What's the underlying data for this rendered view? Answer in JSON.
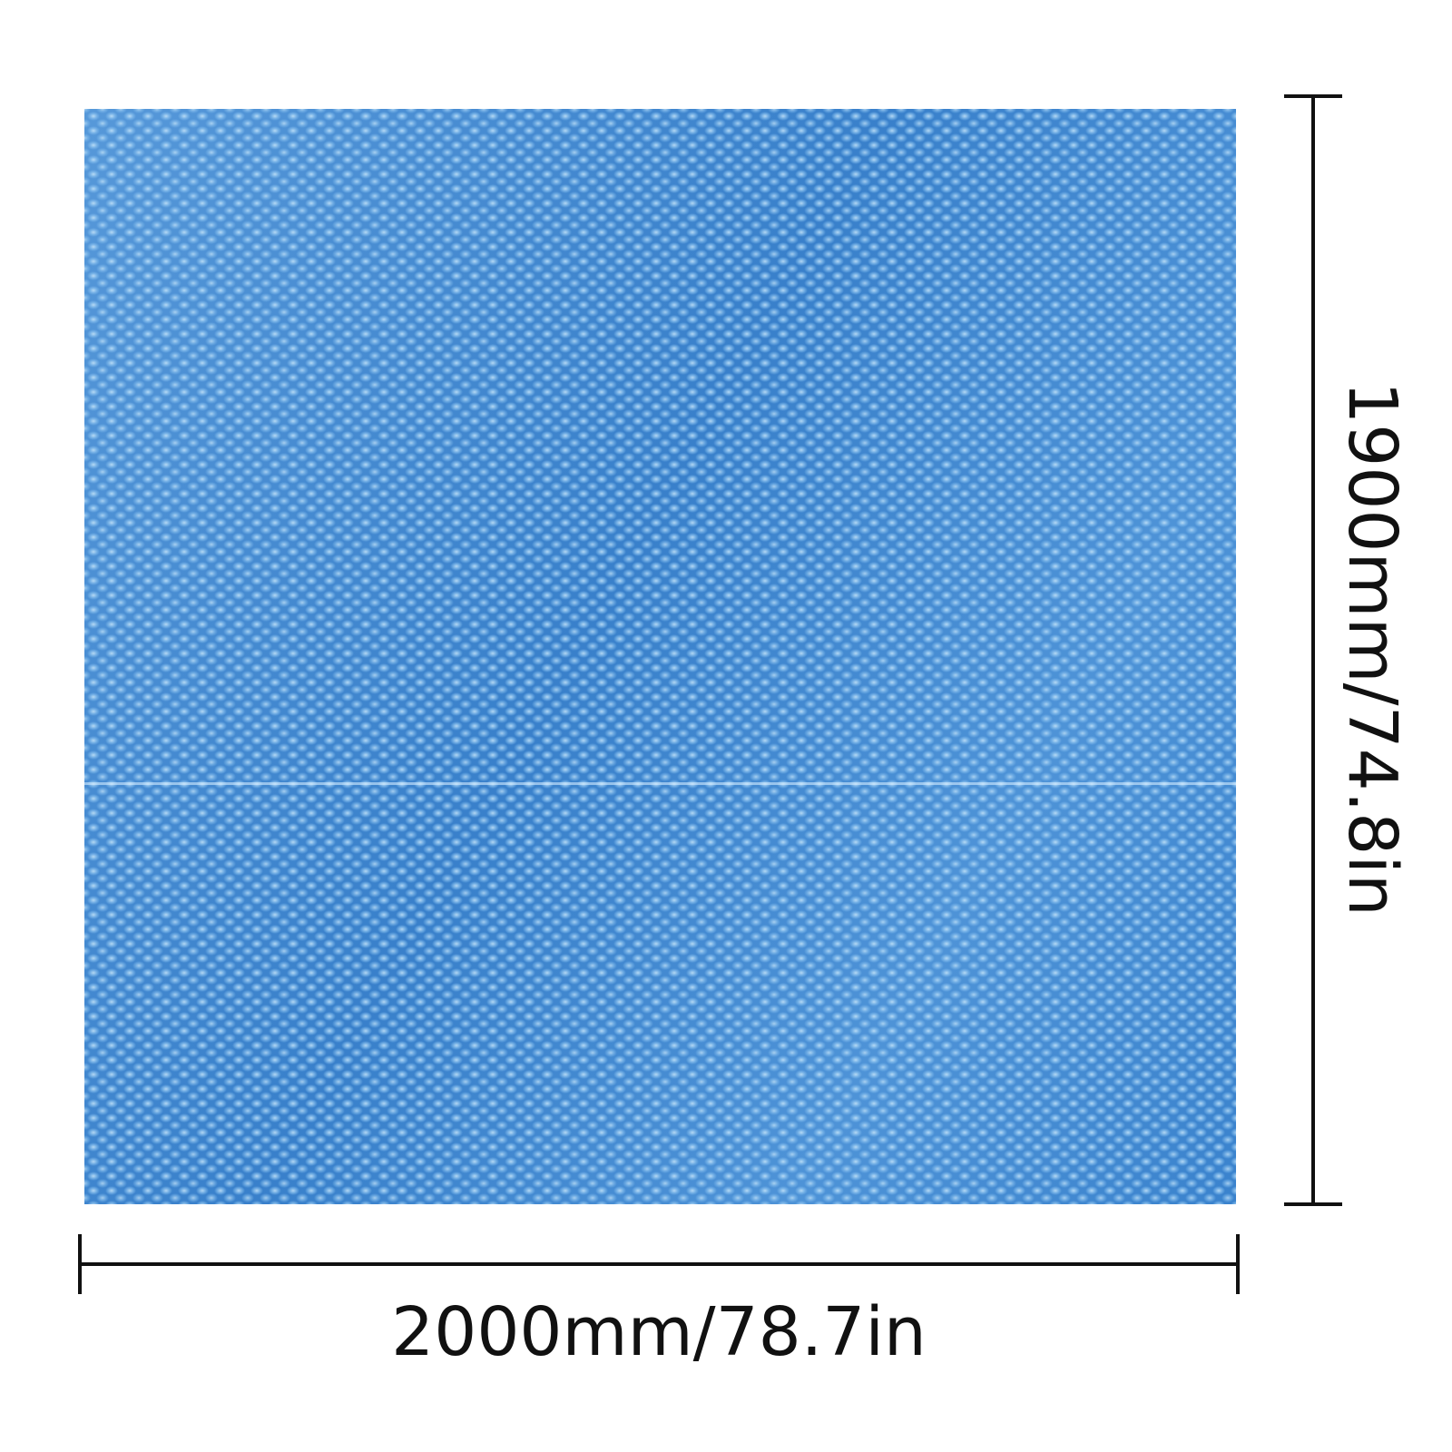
{
  "product_image": {
    "colors": {
      "cover": "#3f8ad4",
      "bubbles": "#c8e6fa",
      "dimension_lines": "#111111"
    }
  },
  "dimensions": {
    "height_label": "1900mm/74.8in",
    "width_label": "2000mm/78.7in"
  }
}
